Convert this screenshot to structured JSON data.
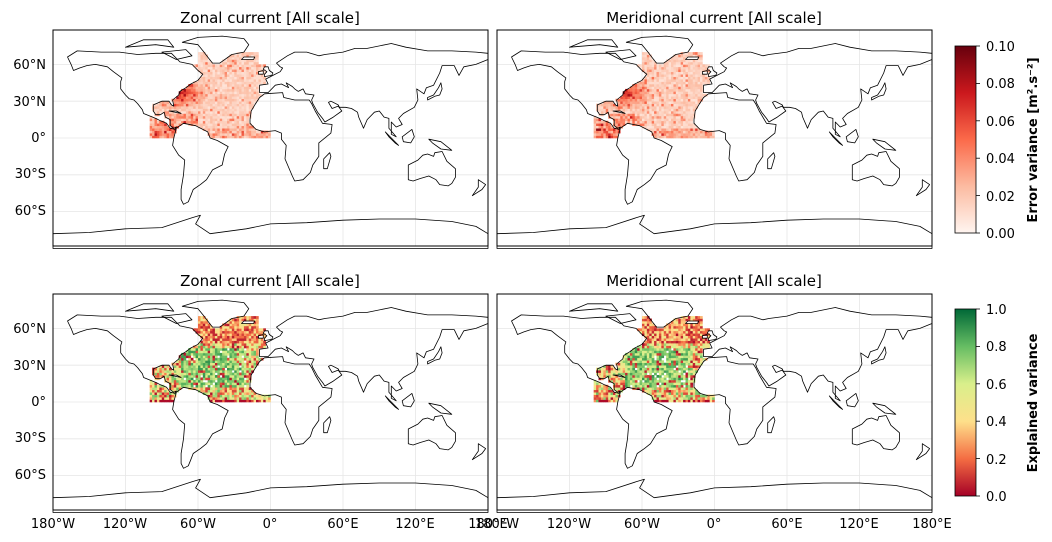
{
  "chart_data": [
    {
      "type": "heatmap",
      "title": "Zonal current [All scale]",
      "quantity": "error_variance",
      "yticks": [
        "60°N",
        "30°N",
        "0°",
        "30°S",
        "60°S"
      ],
      "xticks": [],
      "region": "North Atlantic, 100°W–0°, 0°–70°N"
    },
    {
      "type": "heatmap",
      "title": "Meridional current [All scale]",
      "quantity": "error_variance",
      "yticks": [],
      "xticks": [],
      "region": "North Atlantic, 100°W–0°, 0°–70°N"
    },
    {
      "type": "heatmap",
      "title": "Zonal current [All scale]",
      "quantity": "explained_variance",
      "yticks": [
        "60°N",
        "30°N",
        "0°",
        "30°S",
        "60°S"
      ],
      "xticks": [
        "180°W",
        "120°W",
        "60°W",
        "0°",
        "60°E",
        "120°E",
        "180°E"
      ],
      "region": "North Atlantic, 100°W–0°, 0°–70°N"
    },
    {
      "type": "heatmap",
      "title": "Meridional current [All scale]",
      "quantity": "explained_variance",
      "yticks": [],
      "xticks": [
        "180°W",
        "120°W",
        "60°W",
        "0°",
        "60°E",
        "120°E",
        "180°E"
      ],
      "region": "North Atlantic, 100°W–0°, 0°–70°N"
    }
  ],
  "colorbars": {
    "error": {
      "label": "Error variance [m².s⁻²]",
      "ticks": [
        "0.00",
        "0.02",
        "0.04",
        "0.06",
        "0.08",
        "0.10"
      ],
      "range": [
        0,
        0.1
      ],
      "colormap": "Reds",
      "colors": [
        "#fff5f0",
        "#fcbba1",
        "#fb6a4a",
        "#cb181d",
        "#67000d"
      ]
    },
    "explained": {
      "label": "Explained variance",
      "ticks": [
        "0.0",
        "0.2",
        "0.4",
        "0.6",
        "0.8",
        "1.0"
      ],
      "range": [
        0,
        1
      ],
      "colormap": "RdYlGn",
      "colors": [
        "#a50026",
        "#f46d43",
        "#fee08b",
        "#d9ef8b",
        "#66bd63",
        "#006837"
      ]
    }
  }
}
